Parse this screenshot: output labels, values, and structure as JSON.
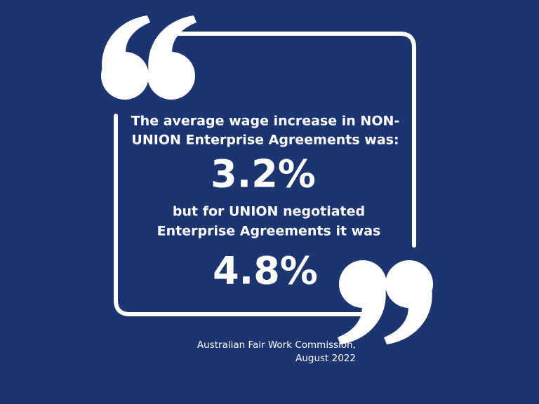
{
  "quote": {
    "intro_lines": [
      "The average wage increase in NON-",
      "UNION Enterprise Agreements was:"
    ],
    "first_stat": "3.2%",
    "middle_lines": [
      "but for UNION negotiated",
      "Enterprise Agreements it was"
    ],
    "second_stat": "4.8%"
  },
  "source": {
    "lines": [
      "Australian Fair Work Commission,",
      "August 2022"
    ]
  }
}
